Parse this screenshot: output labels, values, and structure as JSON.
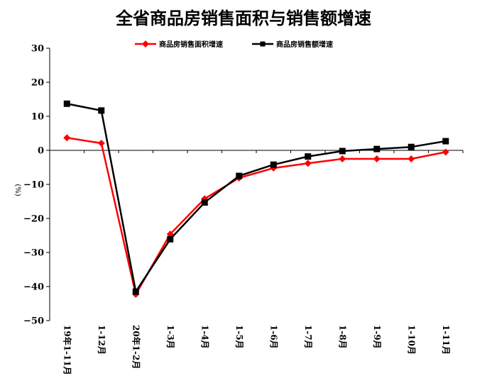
{
  "chart_data": {
    "type": "line",
    "title": "全省商品房销售面积与销售额增速",
    "ylabel": "(%)",
    "xlabel": "",
    "ylim": [
      -50,
      30
    ],
    "yticks": [
      30,
      20,
      10,
      0,
      -10,
      -20,
      -30,
      -40,
      -50
    ],
    "categories": [
      "19年1-11月",
      "1-12月",
      "20年1-2月",
      "1-3月",
      "1-4月",
      "1-5月",
      "1-6月",
      "1-7月",
      "1-8月",
      "1-9月",
      "1-10月",
      "1-11月"
    ],
    "series": [
      {
        "name": "商品房销售面积增速",
        "color": "#ff0000",
        "marker": "diamond",
        "values": [
          3.7,
          2.1,
          -42.3,
          -24.6,
          -14.2,
          -8.1,
          -5.2,
          -3.8,
          -2.5,
          -2.5,
          -2.5,
          -0.5
        ]
      },
      {
        "name": "商品房销售额增速",
        "color": "#000000",
        "marker": "square",
        "values": [
          13.7,
          11.7,
          -41.5,
          -26.1,
          -15.3,
          -7.5,
          -4.2,
          -1.8,
          -0.2,
          0.4,
          1.0,
          2.7
        ]
      }
    ],
    "legend_position": "top-center",
    "grid": false
  }
}
